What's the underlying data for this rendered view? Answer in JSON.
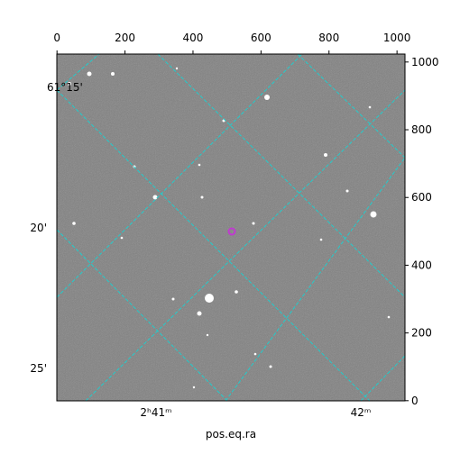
{
  "chart_data": {
    "type": "image",
    "xlabel": "pos.eq.ra",
    "xlim": [
      -0.5,
      1023.5
    ],
    "xticks": [
      0,
      200,
      400,
      600,
      800,
      1000
    ],
    "ylim": [
      -0.5,
      1023.5
    ],
    "yticks": [
      0,
      200,
      400,
      600,
      800,
      1000
    ],
    "ra_ticks": [
      "2ʰ41ᵐ",
      "42ᵐ"
    ],
    "dec_ticks": [
      "61°15'",
      "20'",
      "25'"
    ],
    "grid_color": "#22cccc",
    "background": "#7f7f7f"
  }
}
